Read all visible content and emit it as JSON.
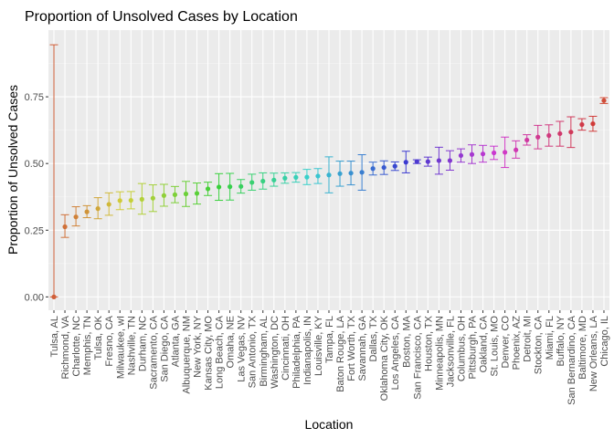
{
  "chart_data": {
    "type": "scatter",
    "title": "Proportion of Unsolved Cases by Location",
    "xlabel": "Location",
    "ylabel": "Proportion of Unsolved Cases",
    "ylim": [
      -0.05,
      1.0
    ],
    "yticks": [
      0.0,
      0.25,
      0.5,
      0.75
    ],
    "ytick_labels": [
      "0.00",
      "0.25",
      "0.50",
      "0.75"
    ],
    "grid": true,
    "legend": "none",
    "panel_color": "#ebebeb",
    "categories": [
      "Tulsa, AL",
      "Richmond, VA",
      "Charlotte, NC",
      "Memphis, TN",
      "Tulsa, OK",
      "Fresno, CA",
      "Milwaukee, wI",
      "Nashville, TN",
      "Durham, NC",
      "Sacramento, CA",
      "San Diego, CA",
      "Atlanta, GA",
      "Albuquerque, NM",
      "New York, NY",
      "Kansas City, MO",
      "Long Beach, CA",
      "Omaha, NE",
      "Las Vegas, NV",
      "San Antonio, TX",
      "Birmingham, AL",
      "Washington, DC",
      "Cincinnati, OH",
      "Philadelphia, PA",
      "Indianapolis, IN",
      "Louisville, KY",
      "Tampa, FL",
      "Baton Rouge, LA",
      "Fort Worth, TX",
      "Savannah, GA",
      "Dallas, TX",
      "Oklahoma City, OK",
      "Los Angeles, CA",
      "Boston, MA",
      "San Francisco, CA",
      "Houston, TX",
      "Minneapolis, MN",
      "Jacksonville, FL",
      "Columbus, OH",
      "Pittsburgh, PA",
      "Oakland, CA",
      "St. Louis, MO",
      "Denver, CO",
      "Phoenix, AZ",
      "Detroit, MI",
      "Stockton, CA",
      "Miami, FL",
      "Buffalo, NY",
      "San Bernardino, CA",
      "Baltimore, MD",
      "New Orleans, LA",
      "Chicago, IL"
    ],
    "estimate": [
      0.0,
      0.263,
      0.3,
      0.319,
      0.331,
      0.347,
      0.361,
      0.362,
      0.366,
      0.37,
      0.38,
      0.383,
      0.386,
      0.388,
      0.405,
      0.412,
      0.413,
      0.414,
      0.429,
      0.434,
      0.438,
      0.445,
      0.448,
      0.449,
      0.453,
      0.457,
      0.462,
      0.464,
      0.467,
      0.481,
      0.485,
      0.49,
      0.505,
      0.507,
      0.507,
      0.511,
      0.511,
      0.53,
      0.534,
      0.536,
      0.54,
      0.542,
      0.551,
      0.588,
      0.599,
      0.605,
      0.612,
      0.618,
      0.646,
      0.649,
      0.736
    ],
    "conf_low": [
      0.0,
      0.223,
      0.266,
      0.297,
      0.293,
      0.306,
      0.327,
      0.33,
      0.31,
      0.32,
      0.34,
      0.353,
      0.339,
      0.348,
      0.38,
      0.362,
      0.363,
      0.389,
      0.4,
      0.404,
      0.415,
      0.426,
      0.43,
      0.421,
      0.425,
      0.39,
      0.415,
      0.42,
      0.4,
      0.457,
      0.459,
      0.474,
      0.465,
      0.5,
      0.49,
      0.46,
      0.475,
      0.505,
      0.5,
      0.505,
      0.515,
      0.485,
      0.52,
      0.569,
      0.555,
      0.565,
      0.565,
      0.56,
      0.625,
      0.621,
      0.725
    ],
    "conf_high": [
      0.945,
      0.308,
      0.338,
      0.342,
      0.372,
      0.39,
      0.394,
      0.395,
      0.425,
      0.42,
      0.422,
      0.414,
      0.433,
      0.427,
      0.43,
      0.462,
      0.463,
      0.44,
      0.46,
      0.465,
      0.464,
      0.465,
      0.466,
      0.478,
      0.481,
      0.525,
      0.509,
      0.509,
      0.533,
      0.505,
      0.51,
      0.506,
      0.546,
      0.514,
      0.524,
      0.561,
      0.548,
      0.555,
      0.57,
      0.568,
      0.565,
      0.599,
      0.585,
      0.608,
      0.643,
      0.645,
      0.658,
      0.675,
      0.668,
      0.677,
      0.747
    ]
  }
}
